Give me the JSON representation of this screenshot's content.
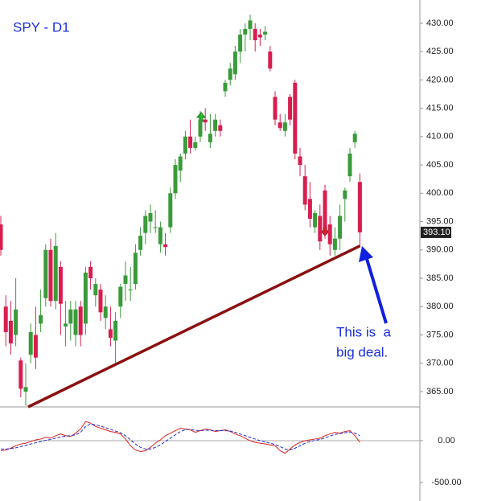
{
  "chart_data": [
    {
      "type": "candlestick",
      "title": "SPY - D1",
      "up_color": "#3a9b3a",
      "down_color": "#d81e4f",
      "candles": [
        [
          394.5,
          396,
          389,
          390
        ],
        [
          380,
          382,
          373,
          375.5
        ],
        [
          377.5,
          381,
          371.5,
          373.5
        ],
        [
          375,
          385,
          373,
          379.5
        ],
        [
          370.5,
          371,
          364,
          365.5
        ],
        [
          365,
          370,
          362.5,
          365.8
        ],
        [
          371.5,
          377,
          370,
          375.5
        ],
        [
          375,
          380,
          369,
          371
        ],
        [
          377,
          383,
          375.5,
          378.5
        ],
        [
          381.5,
          391,
          380,
          390
        ],
        [
          390,
          392,
          380,
          381
        ],
        [
          381,
          393,
          379.5,
          390.7
        ],
        [
          387,
          388,
          375,
          380.5
        ],
        [
          376.5,
          381,
          373,
          377
        ],
        [
          377,
          381,
          374,
          379.5
        ],
        [
          375,
          381,
          373,
          379.5
        ],
        [
          380,
          381,
          373,
          375
        ],
        [
          377,
          387,
          375,
          386
        ],
        [
          387,
          388,
          383,
          385
        ],
        [
          382,
          385,
          380,
          384
        ],
        [
          383,
          384,
          377.5,
          379
        ],
        [
          378,
          382,
          376,
          380
        ],
        [
          376,
          380,
          373,
          374.5
        ],
        [
          374,
          379,
          370,
          377.5
        ],
        [
          380,
          384,
          378,
          383.5
        ],
        [
          384,
          388,
          381,
          385.5
        ],
        [
          383,
          387,
          381,
          383
        ],
        [
          384,
          391,
          383,
          389.5
        ],
        [
          390,
          394,
          389,
          392.5
        ],
        [
          393,
          397,
          391,
          396
        ],
        [
          395,
          398,
          393,
          396.5
        ],
        [
          394,
          397,
          393,
          394
        ],
        [
          391,
          395,
          389.5,
          394
        ],
        [
          391,
          393,
          389,
          390.5
        ],
        [
          394,
          401,
          393,
          400
        ],
        [
          400,
          406,
          399,
          405
        ],
        [
          404,
          407,
          402,
          406.5
        ],
        [
          407,
          411,
          406,
          410
        ],
        [
          410,
          413,
          407,
          408
        ],
        [
          408,
          410,
          407.5,
          409
        ],
        [
          410,
          414.5,
          409,
          413
        ],
        [
          413,
          415,
          411,
          412.5
        ],
        [
          409,
          414,
          408,
          410.5
        ],
        [
          411,
          414,
          410,
          413
        ],
        [
          412,
          413,
          410,
          411
        ],
        [
          418,
          420,
          417,
          419.5
        ],
        [
          420,
          423,
          419,
          422
        ],
        [
          421,
          426,
          420,
          425
        ],
        [
          425,
          429,
          423,
          428
        ],
        [
          428,
          430,
          425,
          429
        ],
        [
          429,
          431.5,
          427,
          430.5
        ],
        [
          429,
          430,
          425,
          427
        ],
        [
          428,
          429,
          426,
          427.5
        ],
        [
          428,
          429.5,
          427,
          428.5
        ],
        [
          425,
          426,
          421.5,
          422
        ],
        [
          417,
          418,
          412,
          413
        ],
        [
          412.5,
          414,
          411,
          411.5
        ],
        [
          411,
          414,
          410,
          412.5
        ],
        [
          417,
          417.5,
          412,
          413
        ],
        [
          419.5,
          420,
          406,
          407
        ],
        [
          406.5,
          408,
          403,
          405
        ],
        [
          403,
          405,
          397,
          398
        ],
        [
          399,
          402,
          394,
          395.5
        ],
        [
          394,
          397,
          393,
          396.5
        ],
        [
          396,
          398,
          390,
          391.5
        ],
        [
          400.5,
          401.5,
          392,
          394
        ],
        [
          394.5,
          396,
          389,
          391
        ],
        [
          390,
          394,
          389,
          392
        ],
        [
          392,
          398,
          390,
          396
        ],
        [
          399,
          401,
          395,
          400.5
        ],
        [
          403,
          408,
          402,
          407
        ],
        [
          409,
          411,
          408,
          410.5
        ],
        [
          402,
          403.5,
          390.5,
          393.1
        ]
      ],
      "ylim": [
        362.3,
        434.1
      ],
      "yticks": [
        {
          "value": 365,
          "label": "365.00"
        },
        {
          "value": 370,
          "label": "370.00"
        },
        {
          "value": 375,
          "label": "375.00"
        },
        {
          "value": 380,
          "label": "380.00"
        },
        {
          "value": 385,
          "label": "385.00"
        },
        {
          "value": 390,
          "label": "390.00"
        },
        {
          "value": 395,
          "label": "395.00"
        },
        {
          "value": 400,
          "label": "400.00"
        },
        {
          "value": 405,
          "label": "405.00"
        },
        {
          "value": 410,
          "label": "410.00"
        },
        {
          "value": 415,
          "label": "415.00"
        },
        {
          "value": 420,
          "label": "420.00"
        },
        {
          "value": 425,
          "label": "425.00"
        },
        {
          "value": 430,
          "label": "430.00"
        }
      ],
      "last_price": {
        "value": 393.1,
        "label": "393.10"
      },
      "trendline": {
        "color": "#8b1010",
        "from": 362.3,
        "to": 390.7
      },
      "annotation": [
        "This is  a",
        "big deal."
      ]
    },
    {
      "type": "line",
      "series": [
        {
          "color": "#e02020",
          "values": [
            -120,
            -110,
            -90,
            -60,
            -40,
            -30,
            -10,
            10,
            20,
            40,
            30,
            60,
            80,
            60,
            50,
            90,
            140,
            230,
            210,
            170,
            150,
            130,
            110,
            100,
            80,
            20,
            -60,
            -110,
            -130,
            -120,
            -80,
            -30,
            10,
            60,
            90,
            120,
            150,
            140,
            130,
            100,
            120,
            140,
            130,
            110,
            120,
            130,
            110,
            80,
            60,
            30,
            0,
            -20,
            -30,
            -40,
            -50,
            -60,
            -120,
            -150,
            -100,
            -50,
            -20,
            0,
            10,
            20,
            30,
            60,
            80,
            100,
            90,
            110,
            120,
            60,
            -20
          ]
        },
        {
          "color": "#2030d0",
          "dashed": true,
          "values": [
            -100,
            -100,
            -95,
            -85,
            -70,
            -55,
            -40,
            -25,
            -10,
            5,
            15,
            30,
            45,
            55,
            60,
            70,
            100,
            170,
            200,
            190,
            175,
            155,
            135,
            115,
            95,
            60,
            10,
            -40,
            -80,
            -100,
            -100,
            -80,
            -50,
            -10,
            30,
            70,
            110,
            130,
            135,
            125,
            120,
            125,
            125,
            120,
            120,
            120,
            115,
            100,
            80,
            60,
            40,
            20,
            0,
            -15,
            -30,
            -45,
            -70,
            -100,
            -110,
            -90,
            -60,
            -30,
            -10,
            5,
            15,
            35,
            55,
            75,
            85,
            95,
            105,
            90,
            60
          ]
        }
      ],
      "ylim": [
        -721,
        404
      ],
      "yticks": [
        {
          "value": 0,
          "label": "0.00"
        },
        {
          "value": -500,
          "label": "-500.00"
        }
      ]
    }
  ]
}
